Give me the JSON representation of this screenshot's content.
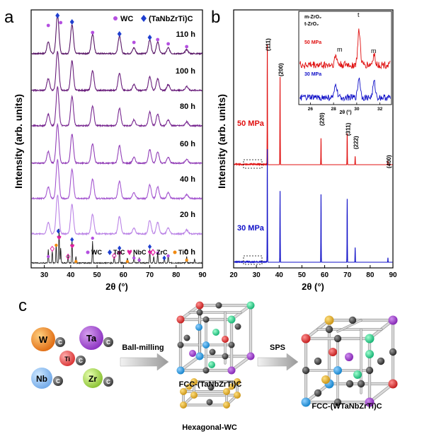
{
  "colors": {
    "wc": "#b44fe0",
    "hea": "#1f3fd0",
    "nbc": "#e020a0",
    "zrc": "#e020a0",
    "tic": "#f08a10",
    "red": "#e01010",
    "blue": "#1010c8",
    "purple_series": [
      "#5a1868",
      "#6a1f7c",
      "#7a2a92",
      "#9340b8",
      "#a558d0",
      "#bb84e6",
      "#222222"
    ]
  },
  "chart_data": [
    {
      "panel": "a",
      "type": "line",
      "title": "",
      "xlabel": "2θ (°)",
      "ylabel": "Intensity (arb. units)",
      "xlim": [
        25,
        90
      ],
      "xticks": [
        30,
        40,
        50,
        60,
        70,
        80,
        90
      ],
      "legend_top": [
        "WC",
        "(TaNbZrTi)C"
      ],
      "legend_bottom": [
        "WC",
        "TaC",
        "NbC",
        "ZrC",
        "TiC"
      ],
      "series": [
        {
          "name": "110 h"
        },
        {
          "name": "100 h"
        },
        {
          "name": "80 h"
        },
        {
          "name": "60 h"
        },
        {
          "name": "40 h"
        },
        {
          "name": "20 h"
        },
        {
          "name": "0 h"
        }
      ],
      "milled_peaks": [
        {
          "x": 31.5,
          "h": 0.3
        },
        {
          "x": 35.0,
          "h": 1.0
        },
        {
          "x": 40.5,
          "h": 0.75
        },
        {
          "x": 48.3,
          "h": 0.5
        },
        {
          "x": 58.5,
          "h": 0.45
        },
        {
          "x": 64.0,
          "h": 0.15
        },
        {
          "x": 70.0,
          "h": 0.35
        },
        {
          "x": 73.0,
          "h": 0.3
        },
        {
          "x": 77.0,
          "h": 0.15
        },
        {
          "x": 84.0,
          "h": 0.1
        }
      ],
      "raw_peaks": [
        {
          "x": 31.5,
          "h": 0.4
        },
        {
          "x": 33.0,
          "h": 0.35
        },
        {
          "x": 34.5,
          "h": 0.55
        },
        {
          "x": 35.6,
          "h": 1.0
        },
        {
          "x": 36.2,
          "h": 0.45
        },
        {
          "x": 39.0,
          "h": 0.25
        },
        {
          "x": 40.5,
          "h": 0.7
        },
        {
          "x": 42.0,
          "h": 0.2
        },
        {
          "x": 48.3,
          "h": 0.65
        },
        {
          "x": 56.5,
          "h": 0.2
        },
        {
          "x": 58.5,
          "h": 0.45
        },
        {
          "x": 61.5,
          "h": 0.15
        },
        {
          "x": 64.0,
          "h": 0.25
        },
        {
          "x": 66.0,
          "h": 0.15
        },
        {
          "x": 70.0,
          "h": 0.4
        },
        {
          "x": 71.5,
          "h": 0.2
        },
        {
          "x": 73.0,
          "h": 0.3
        },
        {
          "x": 75.5,
          "h": 0.2
        },
        {
          "x": 77.0,
          "h": 0.25
        },
        {
          "x": 84.0,
          "h": 0.2
        },
        {
          "x": 87.0,
          "h": 0.12
        }
      ]
    },
    {
      "panel": "b",
      "type": "line",
      "xlabel": "2θ (°)",
      "ylabel": "Intensity (arb. units)",
      "xlim": [
        20,
        90
      ],
      "xticks": [
        20,
        30,
        40,
        50,
        60,
        70,
        80,
        90
      ],
      "series": [
        {
          "name": "50 MPa"
        },
        {
          "name": "30 MPa"
        }
      ],
      "peaks": [
        {
          "x": 34.8,
          "h": 1.0,
          "label": "(111)"
        },
        {
          "x": 40.4,
          "h": 0.73,
          "label": "(200)"
        },
        {
          "x": 58.4,
          "h": 0.22,
          "label": "(220)"
        },
        {
          "x": 69.9,
          "h": 0.26,
          "label": "(311)"
        },
        {
          "x": 73.4,
          "h": 0.07,
          "label": "(222)"
        },
        {
          "x": 87.8,
          "h": 0.03,
          "label": "(400)"
        }
      ],
      "inset": {
        "xlabel": "2θ (°)",
        "xlim": [
          25,
          33
        ],
        "xticks": [
          26,
          28,
          30,
          32
        ],
        "legend": [
          "m-ZrO₂",
          "t-ZrO₂"
        ],
        "annotations": [
          "m",
          "t",
          "m"
        ],
        "series_labels": [
          "50 MPa",
          "30 MPa"
        ]
      }
    }
  ],
  "panel_labels": {
    "a": "a",
    "b": "b",
    "c": "c"
  },
  "schematic": {
    "atoms": [
      {
        "sym": "W",
        "sub": "C"
      },
      {
        "sym": "Ta",
        "sub": "C"
      },
      {
        "sym": "Ti",
        "sub": "C"
      },
      {
        "sym": "Nb",
        "sub": "C"
      },
      {
        "sym": "Zr",
        "sub": "C"
      }
    ],
    "step1": "Ball-milling",
    "step2": "SPS",
    "fcc_label": "FCC-(TaNbZrTi)C",
    "hex_label": "Hexagonal-WC",
    "final_label": "FCC-(WTaNbZrTi)C"
  }
}
